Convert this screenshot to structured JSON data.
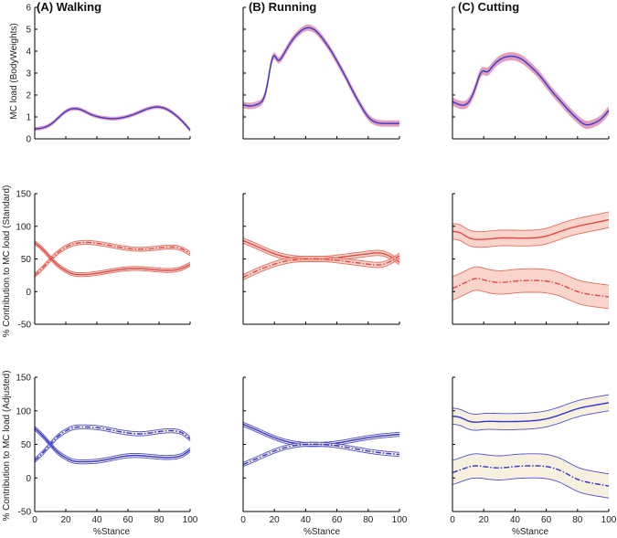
{
  "figure": {
    "columns": [
      "(A) Walking",
      "(B) Running",
      "(C) Cutting"
    ],
    "ylabels": [
      "MC load (BodyWeights)",
      "% Contribution to MC load (Standard)",
      "% Contribution to MC load (Adjusted)"
    ],
    "xlabel": "%Stance"
  },
  "colors": {
    "load_line": "#3a3acc",
    "load_band": "#c8508a",
    "standard": "#e04848",
    "standard_band": "#f3b8a8",
    "adjusted": "#3434cc",
    "adjusted_band": "#f2e6c8"
  },
  "chart_data": [
    {
      "type": "line",
      "row": 0,
      "col": 0,
      "title": "(A) Walking",
      "ylabel": "MC load (BodyWeights)",
      "xlabel": "",
      "xlim": [
        0,
        100
      ],
      "ylim": [
        0,
        6
      ],
      "xticks": [
        "0",
        "20",
        "40",
        "60",
        "80",
        "100"
      ],
      "yticks": [
        "0",
        "1",
        "2",
        "3",
        "4",
        "5",
        "6"
      ],
      "series": [
        {
          "name": "MC load",
          "style": "solid",
          "color": "load_line",
          "band": 0.07,
          "x": [
            0,
            5,
            10,
            15,
            20,
            25,
            30,
            35,
            40,
            45,
            50,
            55,
            60,
            65,
            70,
            75,
            80,
            85,
            90,
            95,
            100
          ],
          "y": [
            0.45,
            0.5,
            0.65,
            0.95,
            1.25,
            1.38,
            1.32,
            1.15,
            1.02,
            0.95,
            0.92,
            0.95,
            1.03,
            1.15,
            1.3,
            1.42,
            1.45,
            1.35,
            1.12,
            0.8,
            0.4
          ]
        }
      ]
    },
    {
      "type": "line",
      "row": 0,
      "col": 1,
      "title": "(B) Running",
      "ylabel": "",
      "xlabel": "",
      "xlim": [
        0,
        100
      ],
      "ylim": [
        0,
        6
      ],
      "xticks": [
        "0",
        "20",
        "40",
        "60",
        "80",
        "100"
      ],
      "yticks": [
        "0",
        "1",
        "2",
        "3",
        "4",
        "5",
        "6"
      ],
      "series": [
        {
          "name": "MC load",
          "style": "solid",
          "color": "load_line",
          "band": 0.13,
          "x": [
            0,
            5,
            10,
            15,
            18,
            20,
            22,
            25,
            30,
            35,
            40,
            45,
            50,
            55,
            60,
            65,
            70,
            75,
            80,
            85,
            90,
            95,
            100
          ],
          "y": [
            1.55,
            1.5,
            1.6,
            2.3,
            3.5,
            3.8,
            3.6,
            3.75,
            4.35,
            4.8,
            5.05,
            5.0,
            4.65,
            4.15,
            3.55,
            2.9,
            2.2,
            1.55,
            1.0,
            0.75,
            0.7,
            0.7,
            0.7
          ]
        }
      ]
    },
    {
      "type": "line",
      "row": 0,
      "col": 2,
      "title": "(C) Cutting",
      "ylabel": "",
      "xlabel": "",
      "xlim": [
        0,
        100
      ],
      "ylim": [
        0,
        6
      ],
      "xticks": [
        "0",
        "20",
        "40",
        "60",
        "80",
        "100"
      ],
      "yticks": [
        "0",
        "1",
        "2",
        "3",
        "4",
        "5",
        "6"
      ],
      "series": [
        {
          "name": "MC load",
          "style": "solid",
          "color": "load_line",
          "band": 0.17,
          "x": [
            0,
            5,
            10,
            15,
            18,
            20,
            22,
            25,
            30,
            35,
            40,
            45,
            50,
            55,
            60,
            65,
            70,
            75,
            80,
            85,
            90,
            95,
            100
          ],
          "y": [
            1.7,
            1.55,
            1.65,
            2.4,
            3.0,
            3.1,
            3.05,
            3.25,
            3.6,
            3.75,
            3.75,
            3.6,
            3.3,
            2.95,
            2.5,
            2.05,
            1.65,
            1.25,
            0.9,
            0.65,
            0.7,
            0.9,
            1.3
          ]
        }
      ]
    },
    {
      "type": "line",
      "row": 1,
      "col": 0,
      "title": "",
      "ylabel": "% Contribution to MC load (Standard)",
      "xlabel": "",
      "xlim": [
        0,
        100
      ],
      "ylim": [
        -50,
        150
      ],
      "xticks": [
        "0",
        "20",
        "40",
        "60",
        "80",
        "100"
      ],
      "yticks": [
        "-50",
        "0",
        "50",
        "100",
        "150"
      ],
      "series": [
        {
          "name": "solid",
          "style": "solid",
          "color": "standard",
          "band": 3,
          "x": [
            0,
            5,
            10,
            15,
            20,
            25,
            30,
            40,
            50,
            60,
            70,
            80,
            90,
            95,
            100
          ],
          "y": [
            75,
            65,
            52,
            40,
            32,
            27,
            26,
            28,
            32,
            35,
            35,
            33,
            33,
            36,
            42
          ]
        },
        {
          "name": "dash-dot",
          "style": "dashdot",
          "color": "standard",
          "band": 3,
          "x": [
            0,
            5,
            10,
            15,
            20,
            25,
            30,
            40,
            50,
            60,
            70,
            80,
            90,
            95,
            100
          ],
          "y": [
            25,
            36,
            49,
            60,
            68,
            73,
            75,
            74,
            70,
            66,
            65,
            67,
            68,
            65,
            58
          ]
        }
      ]
    },
    {
      "type": "line",
      "row": 1,
      "col": 1,
      "title": "",
      "ylabel": "",
      "xlabel": "",
      "xlim": [
        0,
        100
      ],
      "ylim": [
        -50,
        150
      ],
      "xticks": [
        "0",
        "20",
        "40",
        "60",
        "80",
        "100"
      ],
      "yticks": [
        "-50",
        "0",
        "50",
        "100",
        "150"
      ],
      "series": [
        {
          "name": "solid",
          "style": "solid",
          "color": "standard",
          "band": 4,
          "x": [
            0,
            10,
            20,
            30,
            40,
            50,
            60,
            70,
            80,
            90,
            100
          ],
          "y": [
            78,
            68,
            58,
            52,
            50,
            50,
            52,
            55,
            58,
            58,
            45
          ]
        },
        {
          "name": "dash-dot",
          "style": "dashdot",
          "color": "standard",
          "band": 4,
          "x": [
            0,
            10,
            20,
            30,
            40,
            50,
            60,
            70,
            80,
            90,
            100
          ],
          "y": [
            22,
            33,
            42,
            48,
            50,
            50,
            48,
            45,
            42,
            42,
            55
          ]
        }
      ]
    },
    {
      "type": "line",
      "row": 1,
      "col": 2,
      "title": "",
      "ylabel": "",
      "xlabel": "",
      "xlim": [
        0,
        100
      ],
      "ylim": [
        -50,
        150
      ],
      "xticks": [
        "0",
        "20",
        "40",
        "60",
        "80",
        "100"
      ],
      "yticks": [
        "-50",
        "0",
        "50",
        "100",
        "150"
      ],
      "series": [
        {
          "name": "solid",
          "style": "solid",
          "color": "standard",
          "band": 12,
          "x": [
            0,
            5,
            10,
            15,
            20,
            30,
            40,
            50,
            60,
            70,
            80,
            90,
            100
          ],
          "y": [
            92,
            90,
            83,
            80,
            80,
            82,
            82,
            82,
            85,
            93,
            100,
            105,
            110
          ]
        },
        {
          "name": "dash-dot",
          "style": "dashdot",
          "color": "standard",
          "band": 18,
          "x": [
            0,
            5,
            10,
            15,
            20,
            30,
            40,
            50,
            60,
            70,
            80,
            90,
            100
          ],
          "y": [
            5,
            10,
            16,
            20,
            18,
            14,
            16,
            17,
            16,
            10,
            0,
            -5,
            -8
          ]
        }
      ]
    },
    {
      "type": "line",
      "row": 2,
      "col": 0,
      "title": "",
      "ylabel": "% Contribution to MC load (Adjusted)",
      "xlabel": "%Stance",
      "xlim": [
        0,
        100
      ],
      "ylim": [
        -50,
        150
      ],
      "xticks": [
        "0",
        "20",
        "40",
        "60",
        "80",
        "100"
      ],
      "yticks": [
        "-50",
        "0",
        "50",
        "100",
        "150"
      ],
      "series": [
        {
          "name": "solid",
          "style": "solid",
          "color": "adjusted",
          "band": 3,
          "x": [
            0,
            5,
            10,
            15,
            20,
            25,
            30,
            40,
            50,
            60,
            70,
            80,
            90,
            95,
            100
          ],
          "y": [
            74,
            63,
            50,
            38,
            30,
            25,
            24,
            25,
            29,
            33,
            33,
            31,
            31,
            34,
            42
          ]
        },
        {
          "name": "dash-dot",
          "style": "dashdot",
          "color": "adjusted",
          "band": 3,
          "x": [
            0,
            5,
            10,
            15,
            20,
            25,
            30,
            40,
            50,
            60,
            70,
            80,
            90,
            95,
            100
          ],
          "y": [
            26,
            37,
            50,
            62,
            70,
            75,
            76,
            75,
            71,
            67,
            66,
            69,
            70,
            67,
            58
          ]
        }
      ]
    },
    {
      "type": "line",
      "row": 2,
      "col": 1,
      "title": "",
      "ylabel": "",
      "xlabel": "%Stance",
      "xlim": [
        0,
        100
      ],
      "ylim": [
        -50,
        150
      ],
      "xticks": [
        "0",
        "20",
        "40",
        "60",
        "80",
        "100"
      ],
      "yticks": [
        "-50",
        "0",
        "50",
        "100",
        "150"
      ],
      "series": [
        {
          "name": "solid",
          "style": "solid",
          "color": "adjusted",
          "band": 3,
          "x": [
            0,
            10,
            20,
            30,
            40,
            50,
            60,
            70,
            80,
            90,
            100
          ],
          "y": [
            80,
            70,
            60,
            53,
            50,
            50,
            52,
            56,
            60,
            63,
            65
          ]
        },
        {
          "name": "dash-dot",
          "style": "dashdot",
          "color": "adjusted",
          "band": 3,
          "x": [
            0,
            10,
            20,
            30,
            40,
            50,
            60,
            70,
            80,
            90,
            100
          ],
          "y": [
            20,
            30,
            40,
            47,
            50,
            50,
            48,
            44,
            40,
            37,
            35
          ]
        }
      ]
    },
    {
      "type": "line",
      "row": 2,
      "col": 2,
      "title": "",
      "ylabel": "",
      "xlabel": "%Stance",
      "xlim": [
        0,
        100
      ],
      "ylim": [
        -50,
        150
      ],
      "xticks": [
        "0",
        "20",
        "40",
        "60",
        "80",
        "100"
      ],
      "yticks": [
        "-50",
        "0",
        "50",
        "100",
        "150"
      ],
      "series": [
        {
          "name": "solid",
          "style": "solid",
          "color": "adjusted",
          "band": 12,
          "x": [
            0,
            5,
            10,
            15,
            20,
            30,
            40,
            50,
            60,
            70,
            80,
            90,
            100
          ],
          "y": [
            92,
            90,
            85,
            83,
            84,
            84,
            84,
            85,
            88,
            95,
            103,
            108,
            112
          ]
        },
        {
          "name": "dash-dot",
          "style": "dashdot",
          "color": "adjusted",
          "band": 18,
          "x": [
            0,
            5,
            10,
            15,
            20,
            30,
            40,
            50,
            60,
            70,
            80,
            90,
            100
          ],
          "y": [
            8,
            12,
            16,
            18,
            17,
            15,
            17,
            18,
            17,
            10,
            -2,
            -8,
            -12
          ]
        }
      ]
    }
  ]
}
